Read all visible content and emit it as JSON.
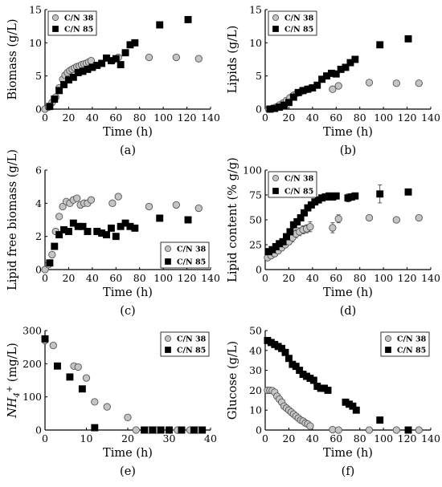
{
  "chart_data": [
    {
      "panel": "(a)",
      "type": "scatter",
      "xlabel": "Time (h)",
      "ylabel": "Biomass (g/L)",
      "xlim": [
        0,
        140
      ],
      "ylim": [
        0,
        15
      ],
      "xticks": [
        0,
        20,
        40,
        60,
        80,
        100,
        120,
        140
      ],
      "yticks": [
        0,
        5,
        10,
        15
      ],
      "legend_position": "top-left",
      "series": [
        {
          "name": "C/N 38",
          "marker": "circle",
          "x": [
            0,
            3,
            6,
            9,
            12,
            15,
            17,
            19,
            21,
            23,
            25,
            27,
            29,
            31,
            33,
            35,
            37,
            39,
            57,
            62,
            88,
            111,
            130
          ],
          "y": [
            0,
            0.3,
            1.0,
            1.8,
            3.2,
            4.5,
            5.1,
            5.5,
            5.8,
            6.0,
            6.2,
            6.4,
            6.5,
            6.7,
            6.8,
            6.9,
            7.1,
            7.3,
            7.3,
            7.8,
            7.8,
            7.8,
            7.6
          ]
        },
        {
          "name": "C/N 85",
          "marker": "square",
          "x": [
            4,
            8,
            12,
            16,
            20,
            24,
            28,
            32,
            36,
            40,
            44,
            48,
            52,
            56,
            60,
            64,
            68,
            72,
            76,
            97,
            121
          ],
          "y": [
            0.4,
            1.5,
            2.8,
            3.7,
            4.4,
            4.8,
            5.5,
            5.7,
            6.0,
            6.3,
            6.6,
            6.9,
            7.7,
            7.3,
            7.6,
            6.7,
            8.5,
            9.7,
            10.0,
            12.7,
            13.5
          ]
        }
      ]
    },
    {
      "panel": "(b)",
      "type": "scatter",
      "xlabel": "Time (h)",
      "ylabel": "Lipids (g/L)",
      "xlim": [
        0,
        140
      ],
      "ylim": [
        0,
        15
      ],
      "xticks": [
        0,
        20,
        40,
        60,
        80,
        100,
        120,
        140
      ],
      "yticks": [
        0,
        5,
        10,
        15
      ],
      "legend_position": "top-left",
      "series": [
        {
          "name": "C/N 38",
          "marker": "circle",
          "x": [
            3,
            6,
            9,
            12,
            15,
            18,
            21,
            24,
            27,
            30,
            33,
            36,
            39,
            57,
            62,
            88,
            111,
            130
          ],
          "y": [
            0,
            0.1,
            0.3,
            0.6,
            0.9,
            1.3,
            1.7,
            2.1,
            2.4,
            2.6,
            2.8,
            3.0,
            3.2,
            3.0,
            3.5,
            4.0,
            3.9,
            3.9
          ]
        },
        {
          "name": "C/N 85",
          "marker": "square",
          "x": [
            4,
            8,
            12,
            16,
            20,
            24,
            28,
            32,
            36,
            40,
            44,
            48,
            52,
            56,
            60,
            64,
            68,
            72,
            76,
            97,
            121
          ],
          "y": [
            0,
            0.1,
            0.3,
            0.6,
            1.0,
            1.8,
            2.5,
            2.8,
            3.0,
            3.2,
            3.6,
            4.5,
            5.0,
            5.4,
            5.3,
            6.0,
            6.3,
            7.0,
            7.5,
            9.7,
            10.6
          ]
        }
      ]
    },
    {
      "panel": "(c)",
      "type": "scatter",
      "xlabel": "Time (h)",
      "ylabel": "Lipid free biomass (g/L)",
      "xlim": [
        0,
        140
      ],
      "ylim": [
        0,
        6
      ],
      "xticks": [
        0,
        20,
        40,
        60,
        80,
        100,
        120,
        140
      ],
      "yticks": [
        0,
        2,
        4,
        6
      ],
      "legend_position": "bottom-right",
      "series": [
        {
          "name": "C/N 38",
          "marker": "circle",
          "x": [
            0,
            3,
            6,
            9,
            12,
            15,
            18,
            21,
            24,
            27,
            30,
            33,
            36,
            39,
            57,
            62,
            88,
            111,
            130
          ],
          "y": [
            0,
            0.3,
            0.9,
            2.3,
            3.2,
            3.8,
            4.1,
            4.0,
            4.2,
            4.3,
            3.9,
            4.0,
            4.0,
            4.2,
            4.0,
            4.4,
            3.8,
            3.9,
            3.7
          ]
        },
        {
          "name": "C/N 85",
          "marker": "square",
          "x": [
            4,
            8,
            12,
            16,
            20,
            24,
            28,
            32,
            36,
            44,
            48,
            52,
            56,
            60,
            64,
            68,
            72,
            76,
            97,
            121
          ],
          "y": [
            0.4,
            1.4,
            2.1,
            2.4,
            2.3,
            2.8,
            2.6,
            2.6,
            2.3,
            2.3,
            2.2,
            2.1,
            2.5,
            2.0,
            2.6,
            2.8,
            2.6,
            2.5,
            3.1,
            3.0
          ]
        }
      ]
    },
    {
      "panel": "(d)",
      "type": "scatter",
      "xlabel": "Time (h)",
      "ylabel": "Lipid content (% g/g)",
      "xlim": [
        0,
        140
      ],
      "ylim": [
        0,
        100
      ],
      "xticks": [
        0,
        20,
        40,
        60,
        80,
        100,
        120,
        140
      ],
      "yticks": [
        0,
        25,
        50,
        75,
        100
      ],
      "legend_position": "top-left",
      "series": [
        {
          "name": "C/N 38",
          "marker": "circle",
          "x": [
            2,
            5,
            8,
            11,
            14,
            17,
            20,
            23,
            26,
            29,
            32,
            35,
            38,
            57,
            62,
            88,
            111,
            130
          ],
          "y": [
            12,
            14,
            16,
            19,
            22,
            25,
            28,
            32,
            36,
            38,
            40,
            41,
            43,
            42,
            51,
            52,
            50,
            52
          ],
          "err": [
            3,
            3,
            3,
            3,
            3,
            3,
            3,
            4,
            4,
            4,
            4,
            4,
            5,
            5,
            4,
            2,
            2,
            2
          ]
        },
        {
          "name": "C/N 85",
          "marker": "square",
          "x": [
            3,
            6,
            9,
            12,
            15,
            18,
            21,
            24,
            27,
            30,
            33,
            36,
            39,
            42,
            45,
            48,
            51,
            54,
            57,
            60,
            70,
            73,
            76,
            97,
            121
          ],
          "y": [
            18,
            20,
            23,
            26,
            28,
            33,
            38,
            45,
            48,
            52,
            57,
            62,
            65,
            68,
            70,
            72,
            73,
            74,
            73,
            74,
            72,
            73,
            74,
            76,
            78
          ],
          "err": [
            3,
            3,
            3,
            3,
            3,
            3,
            3,
            3,
            3,
            3,
            3,
            3,
            3,
            3,
            3,
            3,
            3,
            3,
            3,
            3,
            4,
            3,
            3,
            9,
            2
          ]
        }
      ]
    },
    {
      "panel": "(e)",
      "type": "scatter",
      "xlabel": "Time (h)",
      "ylabel": "NH4+ (mg/L)",
      "xlim": [
        0,
        40
      ],
      "ylim": [
        0,
        300
      ],
      "xticks": [
        0,
        10,
        20,
        30,
        40
      ],
      "yticks": [
        0,
        100,
        200,
        300
      ],
      "legend_position": "top-right",
      "series": [
        {
          "name": "C/N 38",
          "marker": "circle",
          "x": [
            0,
            2,
            7,
            8,
            10,
            12,
            15,
            20,
            22,
            25,
            27,
            30,
            32,
            35,
            37
          ],
          "y": [
            270,
            255,
            193,
            190,
            157,
            85,
            70,
            38,
            0,
            0,
            0,
            0,
            0,
            0,
            0
          ]
        },
        {
          "name": "C/N 85",
          "marker": "square",
          "x": [
            0,
            3,
            6,
            9,
            12,
            24,
            26,
            28,
            30,
            33,
            36,
            38
          ],
          "y": [
            275,
            193,
            160,
            124,
            7,
            0,
            0,
            0,
            0,
            0,
            0,
            0
          ]
        }
      ]
    },
    {
      "panel": "(f)",
      "type": "scatter",
      "xlabel": "Time (h)",
      "ylabel": "Glucose (g/L)",
      "xlim": [
        0,
        140
      ],
      "ylim": [
        0,
        50
      ],
      "xticks": [
        0,
        20,
        40,
        60,
        80,
        100,
        120,
        140
      ],
      "yticks": [
        0,
        10,
        20,
        30,
        40,
        50
      ],
      "legend_position": "top-right",
      "series": [
        {
          "name": "C/N 38",
          "marker": "circle",
          "x": [
            2,
            4,
            6,
            8,
            10,
            12,
            14,
            16,
            18,
            20,
            22,
            24,
            26,
            28,
            30,
            32,
            34,
            36,
            38,
            57,
            62,
            88,
            111,
            130
          ],
          "y": [
            20,
            20,
            19.8,
            19,
            17,
            15.5,
            14,
            12,
            11,
            10,
            9,
            8,
            7,
            6,
            5,
            4.5,
            3.5,
            3,
            2,
            0.2,
            0,
            0,
            0,
            0
          ]
        },
        {
          "name": "C/N 85",
          "marker": "square",
          "x": [
            2,
            5,
            8,
            11,
            14,
            17,
            20,
            23,
            26,
            29,
            32,
            35,
            38,
            41,
            44,
            47,
            50,
            53,
            68,
            71,
            74,
            77,
            97,
            121
          ],
          "y": [
            45,
            44,
            43,
            42,
            41,
            39,
            36,
            33,
            32,
            30,
            28,
            27,
            26,
            25,
            22,
            21,
            21,
            20,
            14,
            13,
            12,
            10,
            5,
            0
          ]
        }
      ]
    }
  ]
}
